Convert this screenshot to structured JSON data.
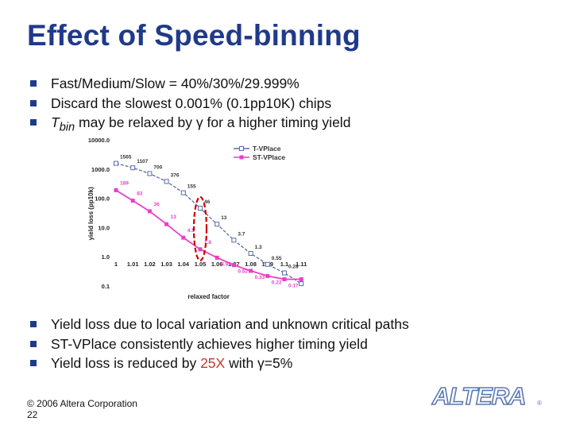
{
  "slide": {
    "title": "Effect of Speed-binning",
    "bullets_top": [
      {
        "text": "Fast/Medium/Slow = 40%/30%/29.999%"
      },
      {
        "text": "Discard the slowest 0.001% (0.1pp10K) chips"
      },
      {
        "pre": "T",
        "sub": "bin",
        "post": " may be relaxed by γ for a higher timing yield"
      }
    ],
    "bullets_bottom": [
      {
        "pre": "Yield loss due to local variation and unknown critical paths",
        "hl": "",
        "post": ""
      },
      {
        "pre": "ST-VPlace consistently achieves higher timing yield",
        "hl": "",
        "post": ""
      },
      {
        "pre": "Yield loss is reduced by ",
        "hl": "25X",
        "post": " with γ=5%"
      }
    ],
    "footer_copyright": "© 2006 Altera Corporation",
    "page_number": "22",
    "logo_text": "ALTERA",
    "logo_mark": "®"
  },
  "chart_data": {
    "type": "line",
    "xlabel": "relaxed factor",
    "ylabel": "yield loss (pp10k)",
    "y_scale": "log",
    "ylim": [
      0.1,
      10000
    ],
    "y_ticks": [
      "0.1",
      "1.0",
      "10.0",
      "100.0",
      "1000.0",
      "10000.0"
    ],
    "categories": [
      "1",
      "1.01",
      "1.02",
      "1.03",
      "1.04",
      "1.05",
      "1.06",
      "1.07",
      "1.08",
      "1.09",
      "1.1",
      "1.11"
    ],
    "series": [
      {
        "name": "T-VPlace",
        "color": "#5a6aa8",
        "marker": "square-open",
        "values": [
          1565,
          1107,
          700,
          376,
          155,
          46,
          13,
          3.7,
          1.3,
          0.55,
          0.28,
          0.12
        ],
        "labels": [
          "1565",
          "1107",
          "700",
          "376",
          "155",
          "46",
          "13",
          "3.7",
          "1.3",
          "0.55",
          "0.28",
          ""
        ]
      },
      {
        "name": "ST-VPlace",
        "color": "#e93fc9",
        "marker": "square-filled",
        "values": [
          189,
          83,
          36,
          13,
          4.5,
          1.8,
          0.93,
          0.52,
          0.33,
          0.22,
          0.17,
          0.17
        ],
        "labels": [
          "189",
          "83",
          "36",
          "13",
          "4.5",
          "1.8",
          "0.93",
          "0.52",
          "0.33",
          "0.22",
          "0.17",
          ""
        ]
      }
    ],
    "annotation": {
      "shape": "dashed-ellipse",
      "color": "#cc0000",
      "at_x": "1.05"
    },
    "legend": "top-right",
    "grid": false
  }
}
